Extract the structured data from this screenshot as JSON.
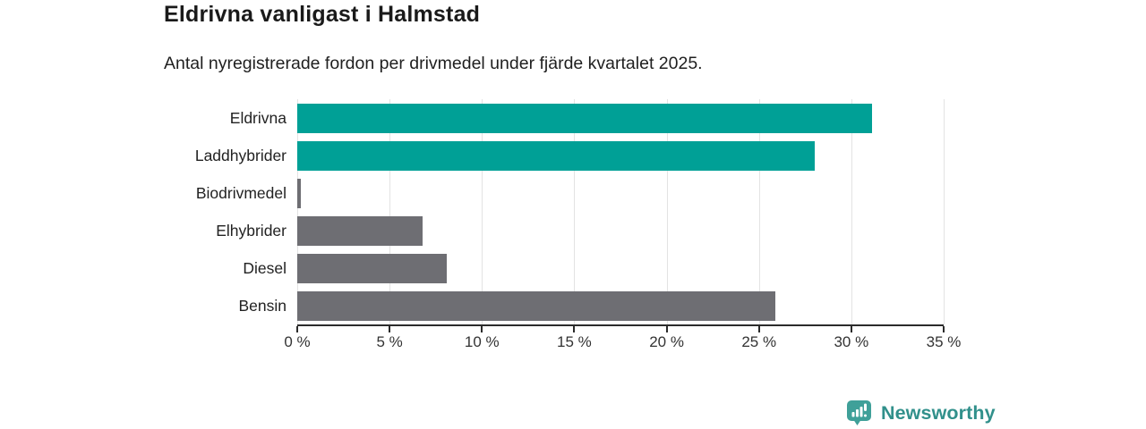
{
  "chart_data": {
    "type": "bar",
    "orientation": "horizontal",
    "title": "Eldrivna vanligast i Halmstad",
    "subtitle": "Antal nyregistrerade fordon per drivmedel under fjärde kvartalet 2025.",
    "categories": [
      "Eldrivna",
      "Laddhybrider",
      "Biodrivmedel",
      "Elhybrider",
      "Diesel",
      "Bensin"
    ],
    "values": [
      31.1,
      28.0,
      0.2,
      6.8,
      8.1,
      25.9
    ],
    "unit": "%",
    "bar_colors": [
      "#00a096",
      "#00a096",
      "#6e6e73",
      "#6e6e73",
      "#6e6e73",
      "#6e6e73"
    ],
    "xlabel": "",
    "ylabel": "",
    "xlim": [
      0,
      35
    ],
    "xticks": [
      0,
      5,
      10,
      15,
      20,
      25,
      30,
      35
    ],
    "xtick_labels": [
      "0 %",
      "5 %",
      "10 %",
      "15 %",
      "20 %",
      "25 %",
      "30 %",
      "35 %"
    ],
    "grid": true,
    "legend": false
  },
  "footer": {
    "brand": "Newsworthy",
    "logo_icon": "bar-chart-speech-bubble-icon"
  },
  "colors": {
    "accent_teal": "#00a096",
    "bar_gray": "#6e6e73",
    "grid": "#e3e3e3",
    "axis": "#2b2b2b",
    "text": "#1f1f1f",
    "brand_teal": "#31908b",
    "logo_bubble": "#3fa099"
  }
}
